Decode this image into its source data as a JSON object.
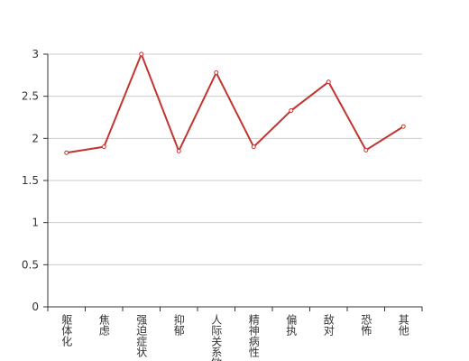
{
  "chart_data": {
    "type": "line",
    "categories": [
      "躯体化",
      "焦虑",
      "强迫症状",
      "抑郁",
      "人际关系敏感",
      "精神病性",
      "偏执",
      "敌对",
      "恐怖",
      "其他"
    ],
    "values": [
      1.83,
      1.9,
      3.0,
      1.85,
      2.78,
      1.9,
      2.33,
      2.67,
      1.86,
      2.14
    ],
    "color": "#c23531",
    "ylim": [
      0,
      3
    ],
    "yticks": [
      0,
      0.5,
      1,
      1.5,
      2,
      2.5,
      3
    ],
    "grid": true
  }
}
